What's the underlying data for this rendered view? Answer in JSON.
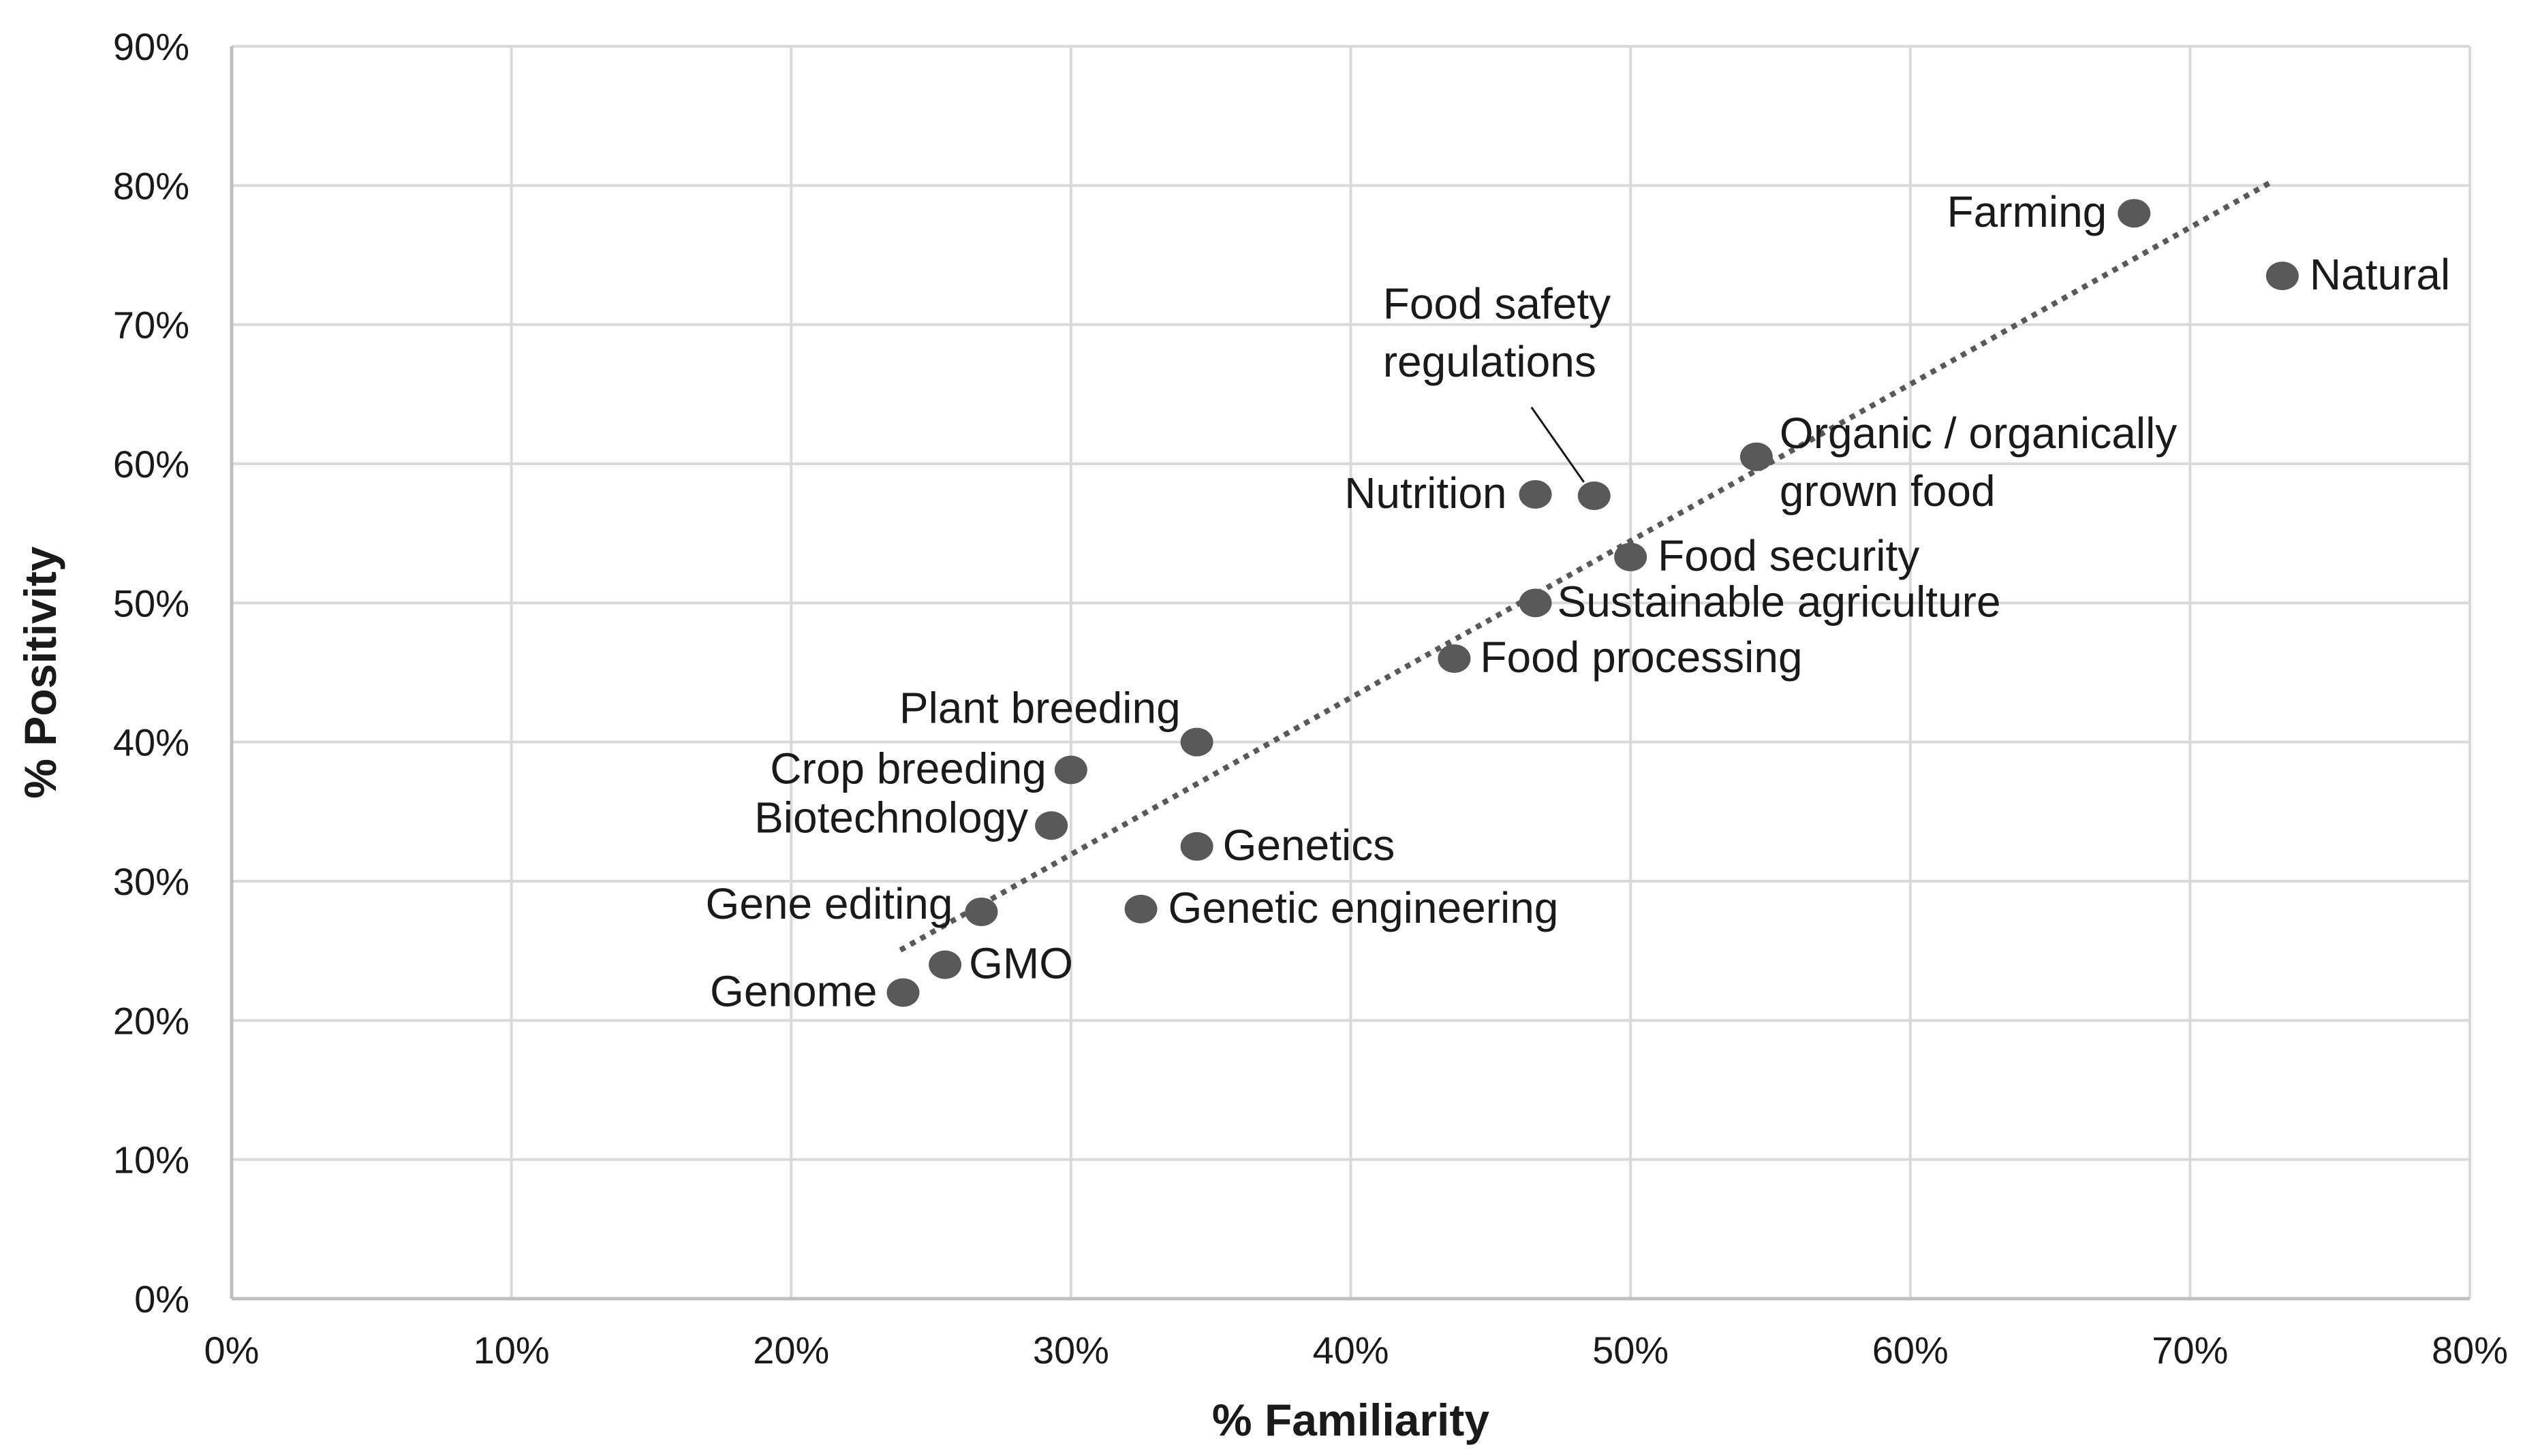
{
  "chart_data": {
    "type": "scatter",
    "title": "",
    "xlabel": "% Familiarity",
    "ylabel": "% Positivity",
    "xlim": [
      0,
      80
    ],
    "ylim": [
      0,
      90
    ],
    "x_ticks": [
      0,
      10,
      20,
      30,
      40,
      50,
      60,
      70,
      80
    ],
    "y_ticks": [
      0,
      10,
      20,
      30,
      40,
      50,
      60,
      70,
      80,
      90
    ],
    "x_tick_labels": [
      "0%",
      "10%",
      "20%",
      "30%",
      "40%",
      "50%",
      "60%",
      "70%",
      "80%"
    ],
    "y_tick_labels": [
      "0%",
      "10%",
      "20%",
      "30%",
      "40%",
      "50%",
      "60%",
      "70%",
      "80%",
      "90%"
    ],
    "grid": true,
    "legend": "none",
    "trendline": {
      "style": "dotted",
      "x_start": 23.9,
      "x_end": 73.0
    },
    "points": [
      {
        "label": "Farming",
        "x": 68.0,
        "y": 78.0,
        "label_lines": [
          "Farming"
        ]
      },
      {
        "label": "Natural",
        "x": 73.3,
        "y": 73.5,
        "label_lines": [
          "Natural"
        ]
      },
      {
        "label": "Food safety regulations",
        "x": 48.7,
        "y": 57.7,
        "label_lines": [
          "Food safety",
          "regulations"
        ]
      },
      {
        "label": "Nutrition",
        "x": 46.6,
        "y": 57.8,
        "label_lines": [
          "Nutrition"
        ]
      },
      {
        "label": "Organic / organically grown food",
        "x": 54.5,
        "y": 60.5,
        "label_lines": [
          "Organic / organically",
          "grown food"
        ]
      },
      {
        "label": "Food security",
        "x": 50.0,
        "y": 53.3,
        "label_lines": [
          "Food security"
        ]
      },
      {
        "label": "Sustainable agriculture",
        "x": 46.6,
        "y": 50.0,
        "label_lines": [
          "Sustainable agriculture"
        ]
      },
      {
        "label": "Food processing",
        "x": 43.7,
        "y": 46.0,
        "label_lines": [
          "Food processing"
        ]
      },
      {
        "label": "Plant breeding",
        "x": 34.5,
        "y": 40.0,
        "label_lines": [
          "Plant breeding"
        ]
      },
      {
        "label": "Crop breeding",
        "x": 30.0,
        "y": 38.0,
        "label_lines": [
          "Crop breeding"
        ]
      },
      {
        "label": "Biotechnology",
        "x": 29.3,
        "y": 34.0,
        "label_lines": [
          "Biotechnology"
        ]
      },
      {
        "label": "Genetics",
        "x": 34.5,
        "y": 32.5,
        "label_lines": [
          "Genetics"
        ]
      },
      {
        "label": "Gene editing",
        "x": 26.8,
        "y": 27.8,
        "label_lines": [
          "Gene editing"
        ]
      },
      {
        "label": "Genetic engineering",
        "x": 32.5,
        "y": 28.0,
        "label_lines": [
          "Genetic engineering"
        ]
      },
      {
        "label": "GMO",
        "x": 25.5,
        "y": 24.0,
        "label_lines": [
          "GMO"
        ]
      },
      {
        "label": "Genome",
        "x": 24.0,
        "y": 22.0,
        "label_lines": [
          "Genome"
        ]
      }
    ]
  }
}
